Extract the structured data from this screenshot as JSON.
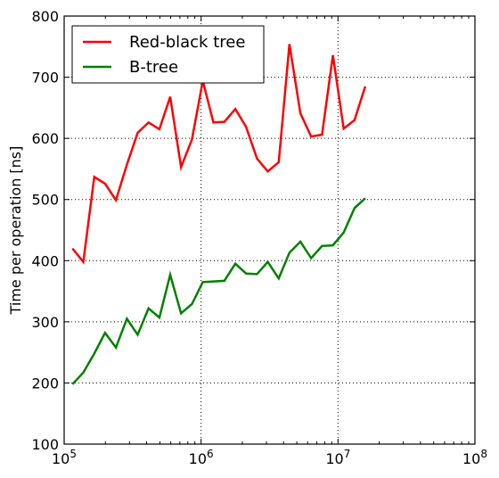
{
  "chart_data": {
    "type": "line",
    "xscale": "log",
    "xlim": [
      100000,
      100000000
    ],
    "ylim": [
      100,
      800
    ],
    "ylabel": "Time per operation [ns]",
    "xlabel": "",
    "grid": true,
    "legend_position": "top-left",
    "x_ticks": [
      {
        "value": 100000,
        "base": "10",
        "exp": "5"
      },
      {
        "value": 1000000,
        "base": "10",
        "exp": "6"
      },
      {
        "value": 10000000,
        "base": "10",
        "exp": "7"
      },
      {
        "value": 100000000,
        "base": "10",
        "exp": "8"
      }
    ],
    "y_ticks": [
      {
        "value": 100,
        "label": "100"
      },
      {
        "value": 200,
        "label": "200"
      },
      {
        "value": 300,
        "label": "300"
      },
      {
        "value": 400,
        "label": "400"
      },
      {
        "value": 500,
        "label": "500"
      },
      {
        "value": 600,
        "label": "600"
      },
      {
        "value": 700,
        "label": "700"
      },
      {
        "value": 800,
        "label": "800"
      }
    ],
    "x": [
      115000,
      138000,
      166000,
      199000,
      239000,
      287000,
      344000,
      413000,
      496000,
      595000,
      714000,
      857000,
      1030000,
      1230000,
      1480000,
      1780000,
      2130000,
      2560000,
      3070000,
      3690000,
      4420000,
      5310000,
      6370000,
      7640000,
      9170000,
      11000000,
      13200000,
      15800000
    ],
    "series": [
      {
        "name": "Red-black tree",
        "color": "#ff0000",
        "values": [
          420,
          398,
          537,
          526,
          499,
          557,
          609,
          626,
          615,
          668,
          553,
          598,
          694,
          626,
          627,
          648,
          619,
          567,
          546,
          561,
          754,
          641,
          603,
          606,
          736,
          616,
          630,
          685
        ]
      },
      {
        "name": "B-tree",
        "color": "#008000",
        "values": [
          198,
          217,
          248,
          282,
          258,
          305,
          279,
          322,
          307,
          377,
          314,
          329,
          365,
          366,
          367,
          395,
          379,
          378,
          398,
          371,
          413,
          431,
          404,
          424,
          425,
          446,
          486,
          502
        ]
      }
    ]
  }
}
